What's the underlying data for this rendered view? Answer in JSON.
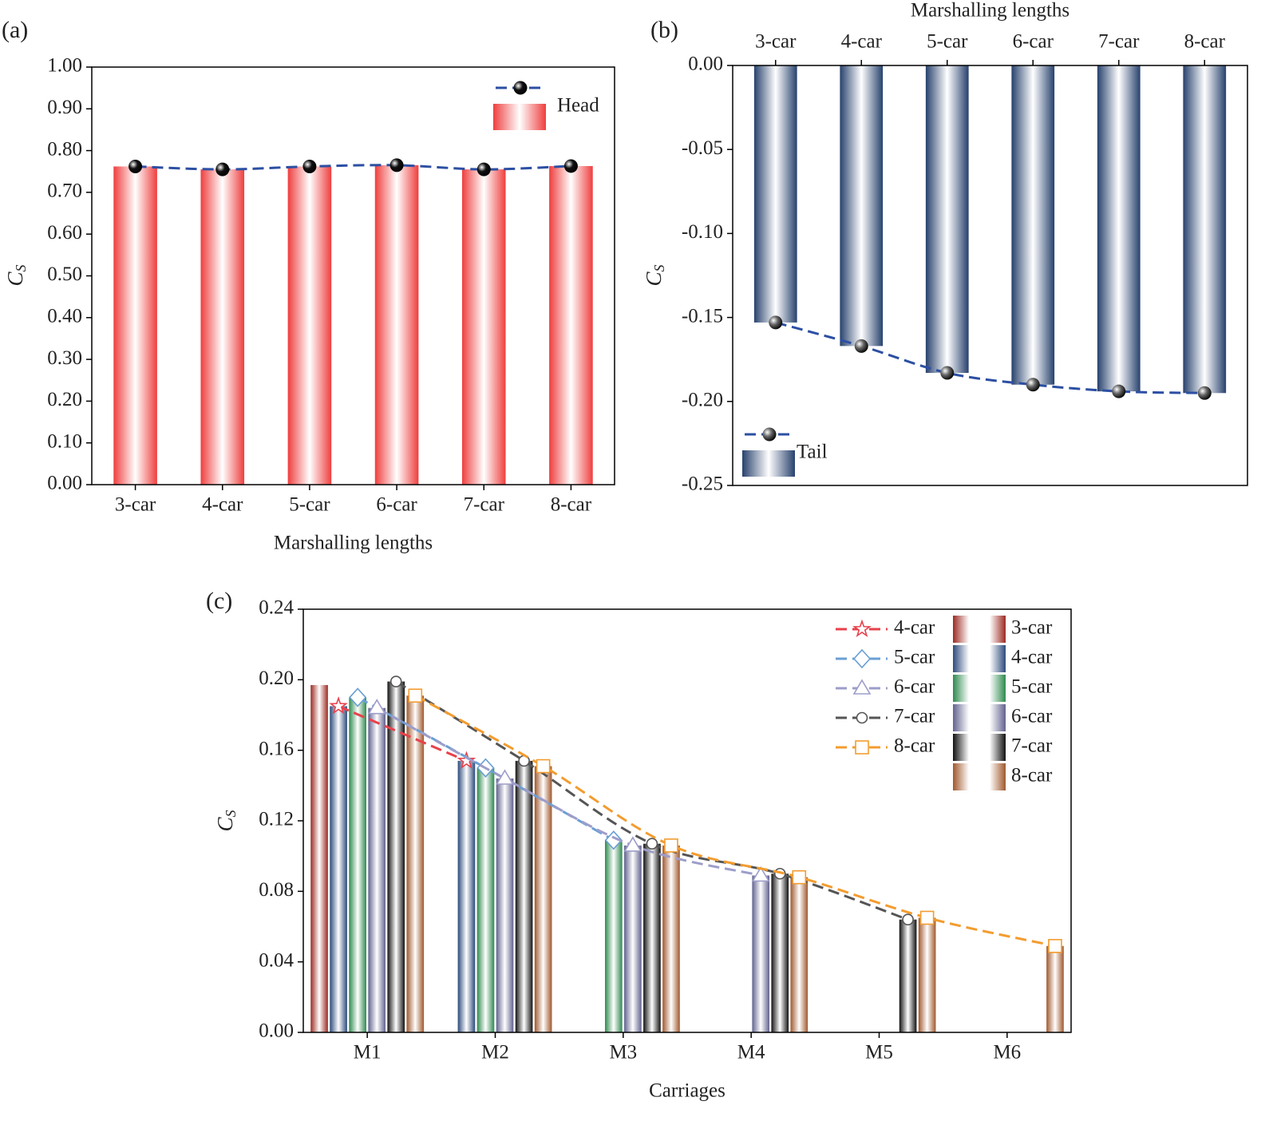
{
  "chart_data": [
    {
      "type": "bar",
      "panel_label": "(a)",
      "xlabel": "Marshalling lengths",
      "ylabel": "C",
      "ylabel_subscript": "S",
      "categories": [
        "3-car",
        "4-car",
        "5-car",
        "6-car",
        "7-car",
        "8-car"
      ],
      "series": [
        {
          "name": "Head",
          "color": "#ef3e3e",
          "line_color": "#2c4fa3",
          "marker_color": "#111111",
          "values": [
            0.762,
            0.755,
            0.762,
            0.765,
            0.755,
            0.763
          ]
        }
      ],
      "ylim": [
        0,
        1
      ],
      "yticks": [
        {
          "value": 0,
          "label": "0.00"
        },
        {
          "value": 0.1,
          "label": "0.10"
        },
        {
          "value": 0.2,
          "label": "0.20"
        },
        {
          "value": 0.3,
          "label": "0.30"
        },
        {
          "value": 0.4,
          "label": "0.40"
        },
        {
          "value": 0.5,
          "label": "0.50"
        },
        {
          "value": 0.6,
          "label": "0.60"
        },
        {
          "value": 0.7,
          "label": "0.70"
        },
        {
          "value": 0.8,
          "label": "0.80"
        },
        {
          "value": 0.9,
          "label": "0.90"
        },
        {
          "value": 1,
          "label": "1.00"
        }
      ],
      "legend": "upper right"
    },
    {
      "type": "bar",
      "panel_label": "(b)",
      "xlabel": "Marshalling lengths",
      "ylabel": "C",
      "ylabel_subscript": "S",
      "xaxis_position": "top",
      "categories": [
        "3-car",
        "4-car",
        "5-car",
        "6-car",
        "7-car",
        "8-car"
      ],
      "series": [
        {
          "name": "Tail",
          "color": "#27416d",
          "line_color": "#2c4fa3",
          "marker_color": "#666666",
          "values": [
            -0.153,
            -0.167,
            -0.183,
            -0.19,
            -0.194,
            -0.195
          ]
        }
      ],
      "ylim": [
        -0.25,
        0
      ],
      "yticks": [
        {
          "value": 0,
          "label": "0.00"
        },
        -0.05,
        {
          "value": -0.1,
          "label": "-0.10"
        },
        -0.15,
        {
          "value": -0.2,
          "label": "-0.20"
        },
        -0.25
      ],
      "legend": "lower left"
    },
    {
      "type": "bar",
      "panel_label": "(c)",
      "xlabel": "Carriages",
      "ylabel": "C",
      "ylabel_subscript": "S",
      "categories": [
        "M1",
        "M2",
        "M3",
        "M4",
        "M5",
        "M6"
      ],
      "series": [
        {
          "name": "3-car",
          "color": "#9c2a22",
          "values": [
            0.197,
            null,
            null,
            null,
            null,
            null
          ]
        },
        {
          "name": "4-car",
          "color": "#2d4b7c",
          "values": [
            0.185,
            0.154,
            null,
            null,
            null,
            null
          ]
        },
        {
          "name": "5-car",
          "color": "#2e8a4e",
          "values": [
            0.19,
            0.15,
            0.109,
            null,
            null,
            null
          ]
        },
        {
          "name": "6-car",
          "color": "#62628f",
          "values": [
            0.184,
            0.144,
            0.106,
            0.089,
            null,
            null
          ]
        },
        {
          "name": "7-car",
          "color": "#111111",
          "values": [
            0.199,
            0.154,
            0.107,
            0.09,
            0.064,
            null
          ]
        },
        {
          "name": "8-car",
          "color": "#a0582d",
          "values": [
            0.191,
            0.151,
            0.106,
            0.088,
            0.065,
            0.049
          ]
        }
      ],
      "line_series": [
        {
          "name": "4-car",
          "color": "#e8414b",
          "marker": "star",
          "values": [
            0.185,
            0.154,
            null,
            null,
            null,
            null
          ]
        },
        {
          "name": "5-car",
          "color": "#6a9fd4",
          "marker": "diamond",
          "values": [
            0.19,
            0.15,
            0.109,
            null,
            null,
            null
          ]
        },
        {
          "name": "6-car",
          "color": "#9d9dca",
          "marker": "triangle",
          "values": [
            0.184,
            0.144,
            0.106,
            0.089,
            null,
            null
          ]
        },
        {
          "name": "7-car",
          "color": "#555555",
          "marker": "circle",
          "values": [
            0.199,
            0.154,
            0.107,
            0.09,
            0.064,
            null
          ]
        },
        {
          "name": "8-car",
          "color": "#f39c2f",
          "marker": "square",
          "values": [
            0.191,
            0.151,
            0.106,
            0.088,
            0.065,
            0.049
          ]
        }
      ],
      "ylim": [
        0,
        0.24
      ],
      "yticks": [
        {
          "value": 0,
          "label": "0.00"
        },
        0.04,
        0.08,
        0.12,
        0.16,
        {
          "value": 0.2,
          "label": "0.20"
        },
        0.24
      ],
      "legend": "upper right"
    }
  ]
}
